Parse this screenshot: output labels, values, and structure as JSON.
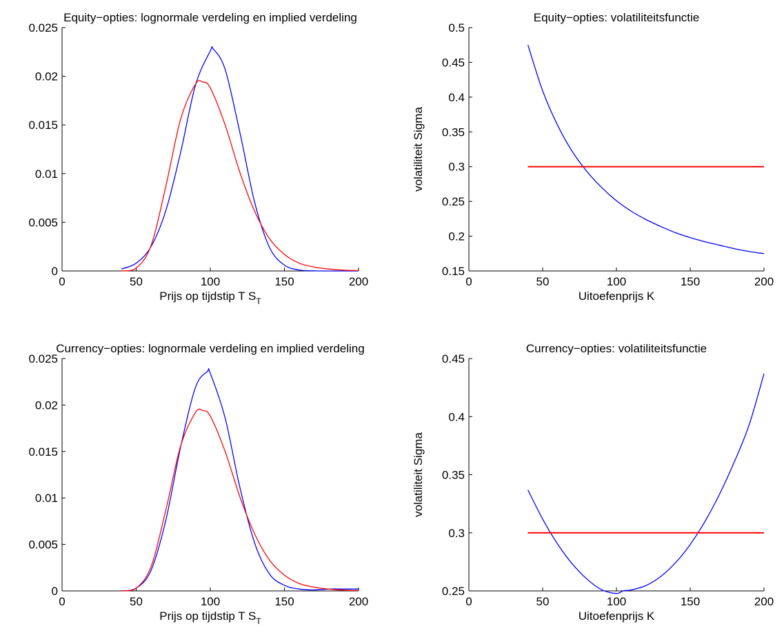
{
  "colors": {
    "blue": "#0000ff",
    "red": "#ff0000",
    "axis": "#000000",
    "background": "#ffffff"
  },
  "chart_data": [
    {
      "type": "line",
      "title": "Equity−opties: lognormale verdeling en implied verdeling",
      "xlabel": "Prijs op tijdstip T S",
      "xlabel_sub": "T",
      "ylabel": "",
      "xlim": [
        0,
        200
      ],
      "ylim": [
        0,
        0.025
      ],
      "xticks": [
        0,
        50,
        100,
        150,
        200
      ],
      "yticks": [
        0,
        0.005,
        0.01,
        0.015,
        0.02,
        0.025
      ],
      "xtick_labels": [
        "0",
        "50",
        "100",
        "150",
        "200"
      ],
      "ytick_labels": [
        "0",
        "0.005",
        "0.01",
        "0.015",
        "0.02",
        "0.025"
      ],
      "grid": false,
      "series": [
        {
          "color": "blue",
          "x": [
            40,
            50,
            60,
            70,
            80,
            90,
            100,
            102,
            110,
            120,
            130,
            140,
            150,
            160,
            170,
            180,
            190,
            200
          ],
          "y": [
            0.0002,
            0.0008,
            0.0025,
            0.0062,
            0.0122,
            0.0191,
            0.0226,
            0.0228,
            0.0207,
            0.0142,
            0.007,
            0.0024,
            0.0006,
            0.0001,
            2e-05,
            0,
            0,
            0
          ]
        },
        {
          "color": "red",
          "x": [
            40,
            50,
            60,
            70,
            80,
            90,
            95,
            100,
            110,
            120,
            130,
            140,
            150,
            160,
            170,
            180,
            190,
            200
          ],
          "y": [
            1e-05,
            0.0003,
            0.0026,
            0.0087,
            0.0156,
            0.0192,
            0.0194,
            0.0188,
            0.015,
            0.0101,
            0.0061,
            0.0033,
            0.0017,
            0.0008,
            0.0004,
            0.0002,
            8e-05,
            4e-05
          ]
        }
      ]
    },
    {
      "type": "line",
      "title": "Equity−opties: volatiliteitsfunctie",
      "xlabel": "Uitoefenprijs K",
      "ylabel": "volatiliteit Sigma",
      "xlim": [
        0,
        200
      ],
      "ylim": [
        0.15,
        0.5
      ],
      "xticks": [
        0,
        50,
        100,
        150,
        200
      ],
      "yticks": [
        0.15,
        0.2,
        0.25,
        0.3,
        0.35,
        0.4,
        0.45,
        0.5
      ],
      "xtick_labels": [
        "0",
        "50",
        "100",
        "150",
        "200"
      ],
      "ytick_labels": [
        "0.15",
        "0.2",
        "0.25",
        "0.3",
        "0.35",
        "0.4",
        "0.45",
        "0.5"
      ],
      "grid": false,
      "series": [
        {
          "color": "blue",
          "x": [
            40,
            50,
            60,
            70,
            80,
            90,
            100,
            110,
            120,
            130,
            140,
            150,
            160,
            170,
            180,
            190,
            200
          ],
          "y": [
            0.475,
            0.409,
            0.36,
            0.322,
            0.293,
            0.27,
            0.251,
            0.236,
            0.224,
            0.214,
            0.205,
            0.198,
            0.192,
            0.187,
            0.182,
            0.178,
            0.175
          ]
        },
        {
          "color": "red",
          "x": [
            40,
            200
          ],
          "y": [
            0.3,
            0.3
          ]
        }
      ]
    },
    {
      "type": "line",
      "title": "Currency−opties: lognormale verdeling en implied verdeling",
      "xlabel": "Prijs op tijdstip T S",
      "xlabel_sub": "T",
      "ylabel": "",
      "xlim": [
        0,
        200
      ],
      "ylim": [
        0,
        0.025
      ],
      "xticks": [
        0,
        50,
        100,
        150,
        200
      ],
      "yticks": [
        0,
        0.005,
        0.01,
        0.015,
        0.02,
        0.025
      ],
      "xtick_labels": [
        "0",
        "50",
        "100",
        "150",
        "200"
      ],
      "ytick_labels": [
        "0",
        "0.005",
        "0.01",
        "0.015",
        "0.02",
        "0.025"
      ],
      "grid": false,
      "series": [
        {
          "color": "blue",
          "x": [
            40,
            50,
            60,
            70,
            80,
            90,
            98,
            100,
            110,
            120,
            130,
            140,
            150,
            160,
            170,
            180,
            190,
            200
          ],
          "y": [
            1e-05,
            0.0003,
            0.0022,
            0.0076,
            0.0155,
            0.0219,
            0.0236,
            0.0234,
            0.0186,
            0.0111,
            0.0051,
            0.0018,
            0.0006,
            0.0002,
            0.0001,
            0.0002,
            0.0002,
            0.0002
          ]
        },
        {
          "color": "red",
          "x": [
            40,
            50,
            60,
            70,
            80,
            90,
            95,
            100,
            110,
            120,
            130,
            140,
            150,
            160,
            170,
            180,
            190,
            200
          ],
          "y": [
            1e-05,
            0.0003,
            0.0026,
            0.0087,
            0.0156,
            0.0192,
            0.0194,
            0.0188,
            0.015,
            0.0101,
            0.0061,
            0.0033,
            0.0017,
            0.0008,
            0.0004,
            0.0002,
            8e-05,
            4e-05
          ]
        }
      ]
    },
    {
      "type": "line",
      "title": "Currency−opties: volatiliteitsfunctie",
      "xlabel": "Uitoefenprijs K",
      "ylabel": "volatiliteit Sigma",
      "xlim": [
        0,
        200
      ],
      "ylim": [
        0.25,
        0.45
      ],
      "xticks": [
        0,
        50,
        100,
        150,
        200
      ],
      "yticks": [
        0.25,
        0.3,
        0.35,
        0.4,
        0.45
      ],
      "xtick_labels": [
        "0",
        "50",
        "100",
        "150",
        "200"
      ],
      "ytick_labels": [
        "0.25",
        "0.3",
        "0.35",
        "0.4",
        "0.45"
      ],
      "grid": false,
      "series": [
        {
          "color": "blue",
          "x": [
            40,
            50,
            60,
            70,
            80,
            90,
            100,
            105,
            110,
            120,
            130,
            140,
            150,
            160,
            170,
            180,
            190,
            200
          ],
          "y": [
            0.3369,
            0.3118,
            0.2906,
            0.2734,
            0.2602,
            0.251,
            0.2478,
            0.2502,
            0.2508,
            0.2546,
            0.2624,
            0.2742,
            0.29,
            0.3098,
            0.3336,
            0.3614,
            0.3932,
            0.437
          ]
        },
        {
          "color": "red",
          "x": [
            40,
            200
          ],
          "y": [
            0.3,
            0.3
          ]
        }
      ]
    }
  ]
}
